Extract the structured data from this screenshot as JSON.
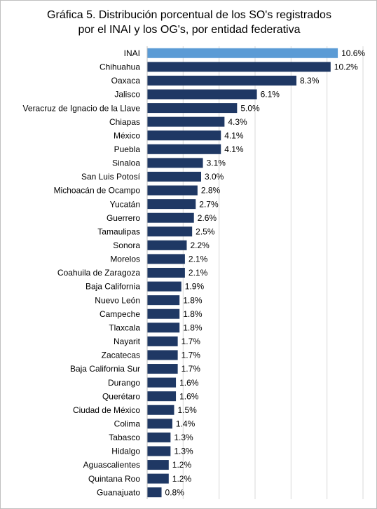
{
  "chart_data": {
    "type": "barh",
    "title": [
      "Gráfica 5. Distribución porcentual de los SO's registrados",
      "por el INAI y los OG's, por entidad federativa"
    ],
    "categories": [
      "INAI",
      "Chihuahua",
      "Oaxaca",
      "Jalisco",
      "Veracruz de Ignacio de la Llave",
      "Chiapas",
      "México",
      "Puebla",
      "Sinaloa",
      "San Luis Potosí",
      "Michoacán de Ocampo",
      "Yucatán",
      "Guerrero",
      "Tamaulipas",
      "Sonora",
      "Morelos",
      "Coahuila de Zaragoza",
      "Baja California",
      "Nuevo León",
      "Campeche",
      "Tlaxcala",
      "Nayarit",
      "Zacatecas",
      "Baja California Sur",
      "Durango",
      "Querétaro",
      "Ciudad de México",
      "Colima",
      "Tabasco",
      "Hidalgo",
      "Aguascalientes",
      "Quintana Roo",
      "Guanajuato"
    ],
    "values": [
      10.6,
      10.2,
      8.3,
      6.1,
      5.0,
      4.3,
      4.1,
      4.1,
      3.1,
      3.0,
      2.8,
      2.7,
      2.6,
      2.5,
      2.2,
      2.1,
      2.1,
      1.9,
      1.8,
      1.8,
      1.8,
      1.7,
      1.7,
      1.7,
      1.6,
      1.6,
      1.5,
      1.4,
      1.3,
      1.3,
      1.2,
      1.2,
      0.8
    ],
    "value_labels": [
      "10.6%",
      "10.2%",
      "8.3%",
      "6.1%",
      "5.0%",
      "4.3%",
      "4.1%",
      "4.1%",
      "3.1%",
      "3.0%",
      "2.8%",
      "2.7%",
      "2.6%",
      "2.5%",
      "2.2%",
      "2.1%",
      "2.1%",
      "1.9%",
      "1.8%",
      "1.8%",
      "1.8%",
      "1.7%",
      "1.7%",
      "1.7%",
      "1.6%",
      "1.6%",
      "1.5%",
      "1.4%",
      "1.3%",
      "1.3%",
      "1.2%",
      "1.2%",
      "0.8%"
    ],
    "colors": [
      "#5b9bd5",
      "#1f3864",
      "#1f3864",
      "#1f3864",
      "#1f3864",
      "#1f3864",
      "#1f3864",
      "#1f3864",
      "#1f3864",
      "#1f3864",
      "#1f3864",
      "#1f3864",
      "#1f3864",
      "#1f3864",
      "#1f3864",
      "#1f3864",
      "#1f3864",
      "#1f3864",
      "#1f3864",
      "#1f3864",
      "#1f3864",
      "#1f3864",
      "#1f3864",
      "#1f3864",
      "#1f3864",
      "#1f3864",
      "#1f3864",
      "#1f3864",
      "#1f3864",
      "#1f3864",
      "#1f3864",
      "#1f3864",
      "#1f3864"
    ],
    "xlim": [
      0,
      12
    ],
    "xticks": [
      0,
      2,
      4,
      6,
      8,
      10,
      12
    ],
    "grid": true
  }
}
